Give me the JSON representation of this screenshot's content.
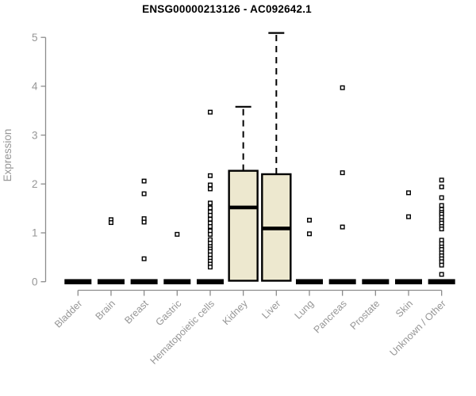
{
  "chart_data": {
    "type": "boxplot",
    "title": "ENSG00000213126 - AC092642.1",
    "ylabel": "Expression",
    "xlabel": "",
    "ylim": [
      0,
      5.2
    ],
    "y_ticks": [
      0,
      1,
      2,
      3,
      4,
      5
    ],
    "grid": false,
    "legend": "none",
    "categories": [
      "Bladder",
      "Brain",
      "Breast",
      "Gastric",
      "Hematopoietic cells",
      "Kidney",
      "Liver",
      "Lung",
      "Pancreas",
      "Prostate",
      "Skin",
      "Unknown / Other"
    ],
    "boxes": [
      {
        "category": "Bladder",
        "collapsed": true,
        "q1": 0,
        "median": 0,
        "q3": 0,
        "whisker_low": 0,
        "whisker_high": 0,
        "outliers": []
      },
      {
        "category": "Brain",
        "collapsed": true,
        "q1": 0,
        "median": 0,
        "q3": 0,
        "whisker_low": 0,
        "whisker_high": 0,
        "outliers": [
          1.27,
          1.21
        ]
      },
      {
        "category": "Breast",
        "collapsed": true,
        "q1": 0,
        "median": 0,
        "q3": 0,
        "whisker_low": 0,
        "whisker_high": 0,
        "outliers": [
          2.06,
          1.8,
          1.29,
          1.22,
          0.47
        ]
      },
      {
        "category": "Gastric",
        "collapsed": true,
        "q1": 0,
        "median": 0,
        "q3": 0,
        "whisker_low": 0,
        "whisker_high": 0,
        "outliers": [
          0.97
        ]
      },
      {
        "category": "Hematopoietic cells",
        "collapsed": true,
        "q1": 0,
        "median": 0,
        "q3": 0,
        "whisker_low": 0,
        "whisker_high": 0,
        "outliers": [
          3.47,
          2.17,
          1.98,
          1.9,
          1.61,
          1.51,
          1.43,
          1.36,
          1.28,
          1.2,
          1.13,
          1.04,
          0.97,
          0.86,
          0.79,
          0.72,
          0.67,
          0.62,
          0.55,
          0.48,
          0.42,
          0.36,
          0.3
        ]
      },
      {
        "category": "Kidney",
        "collapsed": false,
        "q1": 0.02,
        "median": 1.52,
        "q3": 2.27,
        "whisker_low": 0,
        "whisker_high": 3.58,
        "outliers": []
      },
      {
        "category": "Liver",
        "collapsed": false,
        "q1": 0.02,
        "median": 1.09,
        "q3": 2.2,
        "whisker_low": 0,
        "whisker_high": 5.09,
        "outliers": []
      },
      {
        "category": "Lung",
        "collapsed": true,
        "q1": 0,
        "median": 0,
        "q3": 0,
        "whisker_low": 0,
        "whisker_high": 0,
        "outliers": [
          1.26,
          0.98
        ]
      },
      {
        "category": "Pancreas",
        "collapsed": true,
        "q1": 0,
        "median": 0,
        "q3": 0,
        "whisker_low": 0,
        "whisker_high": 0,
        "outliers": [
          3.97,
          2.23,
          1.12
        ]
      },
      {
        "category": "Prostate",
        "collapsed": true,
        "q1": 0,
        "median": 0,
        "q3": 0,
        "whisker_low": 0,
        "whisker_high": 0,
        "outliers": []
      },
      {
        "category": "Skin",
        "collapsed": true,
        "q1": 0,
        "median": 0,
        "q3": 0,
        "whisker_low": 0,
        "whisker_high": 0,
        "outliers": [
          1.82,
          1.33
        ]
      },
      {
        "category": "Unknown / Other",
        "collapsed": true,
        "q1": 0,
        "median": 0,
        "q3": 0,
        "whisker_low": 0,
        "whisker_high": 0,
        "outliers": [
          2.08,
          1.94,
          1.72,
          1.56,
          1.48,
          1.42,
          1.38,
          1.32,
          1.25,
          1.2,
          1.13,
          1.08,
          0.85,
          0.78,
          0.71,
          0.66,
          0.59,
          0.53,
          0.47,
          0.41,
          0.34,
          0.15
        ]
      }
    ],
    "colors": {
      "box_fill": "#EDE8CF",
      "box_stroke": "#000000",
      "median": "#000000",
      "whisker": "#000000",
      "outlier_fill": "#ffffff",
      "outlier_stroke": "#000000",
      "axis_line": "#8C8C8C",
      "tick_label": "#969696",
      "title": "#000000",
      "background": "#ffffff"
    }
  }
}
